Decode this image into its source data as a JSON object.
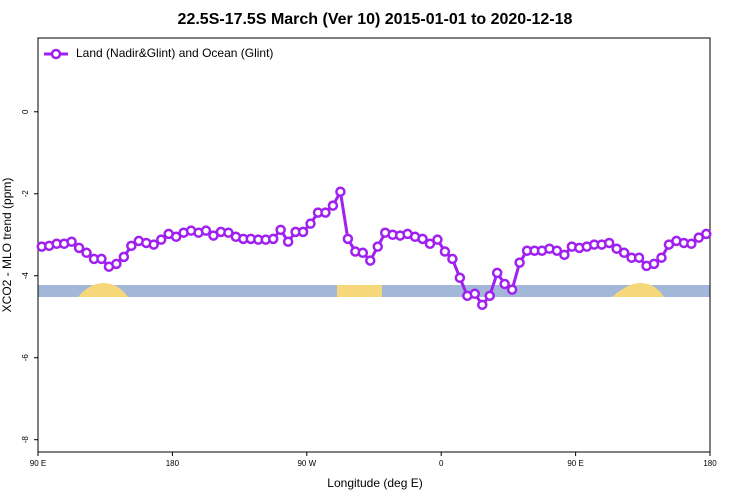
{
  "chart_data": {
    "type": "line",
    "title": "22.5S-17.5S March (Ver 10)   2015-01-01 to 2020-12-18",
    "x_label": "Longitude (deg E)",
    "y_label": "XCO2 - MLO trend (ppm)",
    "legend": "top-left",
    "x": [
      92.5,
      97.5,
      102.5,
      107.5,
      112.5,
      117.5,
      122.5,
      127.5,
      132.5,
      137.5,
      142.5,
      147.5,
      152.5,
      157.5,
      162.5,
      167.5,
      172.5,
      177.5,
      182.5,
      187.5,
      192.5,
      197.5,
      202.5,
      207.5,
      212.5,
      217.5,
      222.5,
      227.5,
      232.5,
      237.5,
      242.5,
      247.5,
      252.5,
      257.5,
      262.5,
      267.5,
      272.5,
      277.5,
      282.5,
      287.5,
      292.5,
      297.5,
      302.5,
      307.5,
      312.5,
      317.5,
      322.5,
      327.5,
      332.5,
      337.5,
      342.5,
      347.5,
      352.5,
      357.5,
      362.5,
      367.5,
      372.5,
      377.5,
      382.5,
      387.5,
      392.5,
      397.5,
      402.5,
      407.5,
      412.5,
      417.5,
      422.5,
      427.5,
      432.5,
      437.5,
      442.5,
      447.5,
      452.5,
      457.5,
      462.5,
      467.5,
      472.5,
      477.5,
      482.5,
      487.5,
      492.5,
      497.5,
      502.5,
      507.5,
      512.5,
      517.5,
      522.5,
      527.5,
      532.5,
      537.5
    ],
    "series": [
      {
        "name": "Land (Nadir&Glint) and Ocean (Glint)",
        "color": "#a020f0",
        "values": [
          -3.29,
          -3.27,
          -3.22,
          -3.22,
          -3.17,
          -3.32,
          -3.44,
          -3.59,
          -3.59,
          -3.78,
          -3.71,
          -3.54,
          -3.27,
          -3.15,
          -3.2,
          -3.24,
          -3.12,
          -2.98,
          -3.05,
          -2.95,
          -2.9,
          -2.95,
          -2.9,
          -3.02,
          -2.93,
          -2.95,
          -3.05,
          -3.1,
          -3.1,
          -3.12,
          -3.12,
          -3.1,
          -2.88,
          -3.17,
          -2.93,
          -2.93,
          -2.73,
          -2.46,
          -2.46,
          -2.29,
          -1.95,
          -3.1,
          -3.41,
          -3.44,
          -3.63,
          -3.29,
          -2.95,
          -3.0,
          -3.02,
          -2.98,
          -3.05,
          -3.1,
          -3.22,
          -3.12,
          -3.41,
          -3.59,
          -4.05,
          -4.49,
          -4.44,
          -4.71,
          -4.49,
          -3.93,
          -4.2,
          -4.34,
          -3.68,
          -3.39,
          -3.39,
          -3.39,
          -3.34,
          -3.39,
          -3.49,
          -3.29,
          -3.32,
          -3.29,
          -3.24,
          -3.24,
          -3.2,
          -3.34,
          -3.44,
          -3.56,
          -3.56,
          -3.76,
          -3.71,
          -3.56,
          -3.24,
          -3.15,
          -3.2,
          -3.22,
          -3.07,
          -2.98
        ]
      }
    ],
    "xlim": [
      90,
      540
    ],
    "xticks": [
      {
        "value": 90,
        "label": "90 E"
      },
      {
        "value": 180,
        "label": "180"
      },
      {
        "value": 270,
        "label": "90 W"
      },
      {
        "value": 360,
        "label": "0"
      },
      {
        "value": 450,
        "label": "90 E"
      },
      {
        "value": 540,
        "label": "180"
      }
    ],
    "ylim": [
      -8.3,
      1.8
    ],
    "yticks": [
      0,
      -2,
      -4,
      -6,
      -8
    ]
  }
}
